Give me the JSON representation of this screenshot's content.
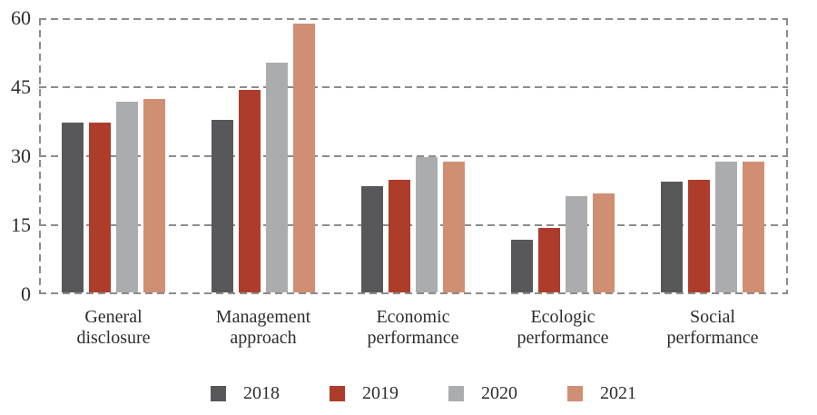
{
  "chart_data": {
    "type": "bar",
    "title": "",
    "xlabel": "",
    "ylabel": "",
    "categories": [
      "General disclosure",
      "Management approach",
      "Economic performance",
      "Ecologic performance",
      "Social performance"
    ],
    "series": [
      {
        "name": "2018",
        "color": "#58585a",
        "values": [
          37,
          37.5,
          23,
          11.5,
          24
        ]
      },
      {
        "name": "2019",
        "color": "#ae3c2b",
        "values": [
          37,
          44,
          24.5,
          14,
          24.5
        ]
      },
      {
        "name": "2020",
        "color": "#aaacae",
        "values": [
          41.5,
          50,
          29.5,
          21,
          28.5
        ]
      },
      {
        "name": "2021",
        "color": "#d08f73",
        "values": [
          42,
          58.5,
          28.5,
          21.5,
          28.5
        ]
      }
    ],
    "ylim": [
      0,
      60
    ],
    "yticks": [
      0,
      15,
      30,
      45,
      60
    ],
    "grid": "horizontal dashed lines at each y tick, dashed border around plot area",
    "grid_color": "#8c8c8c",
    "legend_position": "bottom",
    "legend_labels": [
      "2018",
      "2019",
      "2020",
      "2021"
    ]
  }
}
